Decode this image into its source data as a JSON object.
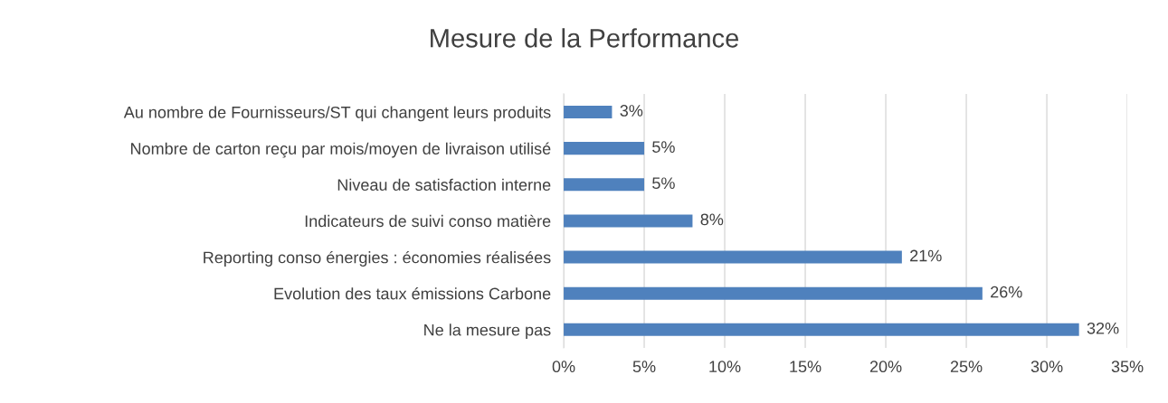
{
  "chart_data": {
    "type": "bar",
    "orientation": "horizontal",
    "title": "Mesure de la Performance",
    "categories": [
      "Au nombre de Fournisseurs/ST qui changent leurs produits",
      "Nombre de carton reçu par mois/moyen de livraison utilisé",
      "Niveau de satisfaction interne",
      "Indicateurs de suivi conso matière",
      "Reporting conso énergies : économies réalisées",
      "Evolution des taux émissions Carbone",
      "Ne la mesure pas"
    ],
    "values": [
      3,
      5,
      5,
      8,
      21,
      26,
      32
    ],
    "value_labels": [
      "3%",
      "5%",
      "5%",
      "8%",
      "21%",
      "26%",
      "32%"
    ],
    "color": "#4f81bd",
    "xlim": [
      0,
      35
    ],
    "xticks": [
      {
        "value": 0,
        "label": "0%"
      },
      {
        "value": 5,
        "label": "5%"
      },
      {
        "value": 10,
        "label": "10%"
      },
      {
        "value": 15,
        "label": "15%"
      },
      {
        "value": 20,
        "label": "20%"
      },
      {
        "value": 25,
        "label": "25%"
      },
      {
        "value": 30,
        "label": "30%"
      },
      {
        "value": 35,
        "label": "35%"
      }
    ],
    "grid": "x",
    "legend": false
  }
}
